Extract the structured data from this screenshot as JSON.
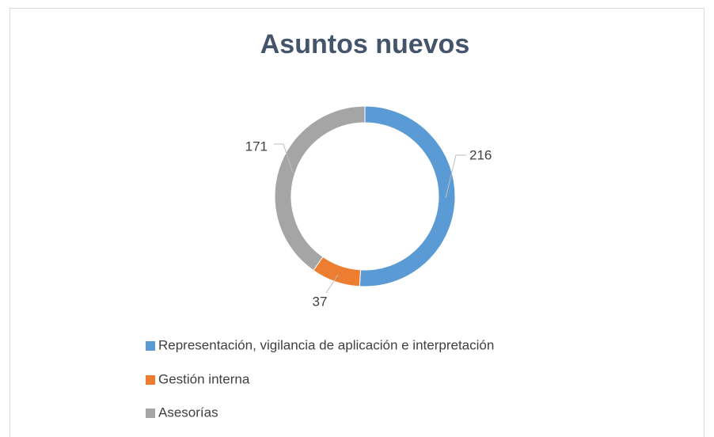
{
  "chart_data": {
    "type": "donut",
    "title": "Asuntos nuevos",
    "categories": [
      "Representación, vigilancia de aplicación e interpretación",
      "Gestión interna",
      "Asesorías"
    ],
    "values": [
      216,
      37,
      171
    ],
    "colors": [
      "#5b9bd5",
      "#ed7d31",
      "#a5a5a5"
    ],
    "legend": "bottom"
  }
}
